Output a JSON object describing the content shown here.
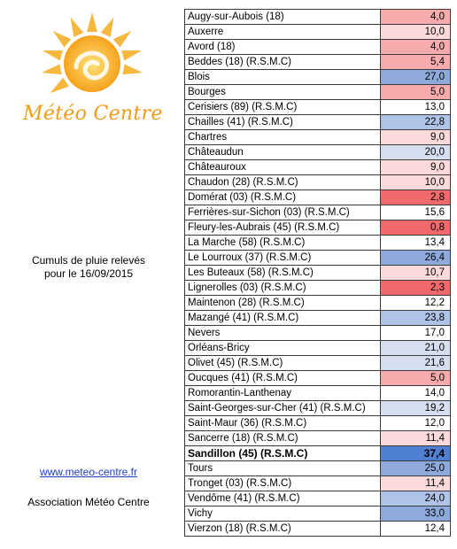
{
  "logo": {
    "text": "Météo Centre"
  },
  "caption": {
    "line1": "Cumuls de pluie relevés",
    "line2": "pour le 16/09/2015"
  },
  "link": "www.meteo-centre.fr",
  "association": "Association Météo Centre",
  "scale_colors": {
    "very_dry": "#f0696b",
    "dry": "#f7abad",
    "light_dry": "#fcd9da",
    "neutral": "#ffffff",
    "light_wet": "#d5dff0",
    "wet": "#aec3e6",
    "very_wet": "#8eaadc",
    "wettest": "#4f7fd0"
  },
  "rows": [
    {
      "station": "Augy-sur-Aubois (18)",
      "value": "4,0",
      "level": "dry"
    },
    {
      "station": "Auxerre",
      "value": "10,0",
      "level": "light_dry"
    },
    {
      "station": "Avord (18)",
      "value": "4,0",
      "level": "dry"
    },
    {
      "station": "Beddes (18) (R.S.M.C)",
      "value": "5,4",
      "level": "dry"
    },
    {
      "station": "Blois",
      "value": "27,0",
      "level": "very_wet"
    },
    {
      "station": "Bourges",
      "value": "5,0",
      "level": "dry"
    },
    {
      "station": "Cerisiers (89) (R.S.M.C)",
      "value": "13,0",
      "level": "neutral"
    },
    {
      "station": "Chailles (41) (R.S.M.C)",
      "value": "22,8",
      "level": "wet"
    },
    {
      "station": "Chartres",
      "value": "9,0",
      "level": "light_dry"
    },
    {
      "station": "Châteaudun",
      "value": "20,0",
      "level": "light_wet"
    },
    {
      "station": "Châteauroux",
      "value": "9,0",
      "level": "light_dry"
    },
    {
      "station": "Chaudon (28) (R.S.M.C)",
      "value": "10,0",
      "level": "light_dry"
    },
    {
      "station": "Domérat (03) (R.S.M.C)",
      "value": "2,8",
      "level": "very_dry"
    },
    {
      "station": "Ferrières-sur-Sichon (03) (R.S.M.C)",
      "value": "15,6",
      "level": "neutral"
    },
    {
      "station": "Fleury-les-Aubrais (45) (R.S.M.C)",
      "value": "0,8",
      "level": "very_dry"
    },
    {
      "station": "La Marche (58) (R.S.M.C)",
      "value": "13,4",
      "level": "neutral"
    },
    {
      "station": "Le Lourroux (37) (R.S.M.C)",
      "value": "26,4",
      "level": "very_wet"
    },
    {
      "station": "Les Buteaux (58) (R.S.M.C)",
      "value": "10,7",
      "level": "light_dry"
    },
    {
      "station": "Lignerolles (03) (R.S.M.C)",
      "value": "2,3",
      "level": "very_dry"
    },
    {
      "station": "Maintenon (28) (R.S.M.C)",
      "value": "12,2",
      "level": "neutral"
    },
    {
      "station": "Mazangé (41) (R.S.M.C)",
      "value": "23,8",
      "level": "wet"
    },
    {
      "station": "Nevers",
      "value": "17,0",
      "level": "neutral"
    },
    {
      "station": "Orléans-Bricy",
      "value": "21,0",
      "level": "light_wet"
    },
    {
      "station": "Olivet (45) (R.S.M.C)",
      "value": "21,6",
      "level": "light_wet"
    },
    {
      "station": "Oucques (41) (R.S.M.C)",
      "value": "5,0",
      "level": "dry"
    },
    {
      "station": "Romorantin-Lanthenay",
      "value": "14,0",
      "level": "neutral"
    },
    {
      "station": "Saint-Georges-sur-Cher (41) (R.S.M.C)",
      "value": "19,2",
      "level": "light_wet"
    },
    {
      "station": "Saint-Maur (36) (R.S.M.C)",
      "value": "12,0",
      "level": "neutral"
    },
    {
      "station": "Sancerre (18) (R.S.M.C)",
      "value": "11,4",
      "level": "light_dry"
    },
    {
      "station": "Sandillon (45) (R.S.M.C)",
      "value": "37,4",
      "level": "wettest",
      "bold": true
    },
    {
      "station": "Tours",
      "value": "25,0",
      "level": "very_wet"
    },
    {
      "station": "Tronget (03) (R.S.M.C)",
      "value": "11,4",
      "level": "light_dry"
    },
    {
      "station": "Vendôme (41) (R.S.M.C)",
      "value": "24,0",
      "level": "wet"
    },
    {
      "station": "Vichy",
      "value": "33,0",
      "level": "very_wet"
    },
    {
      "station": "Vierzon (18) (R.S.M.C)",
      "value": "12,4",
      "level": "neutral"
    }
  ]
}
